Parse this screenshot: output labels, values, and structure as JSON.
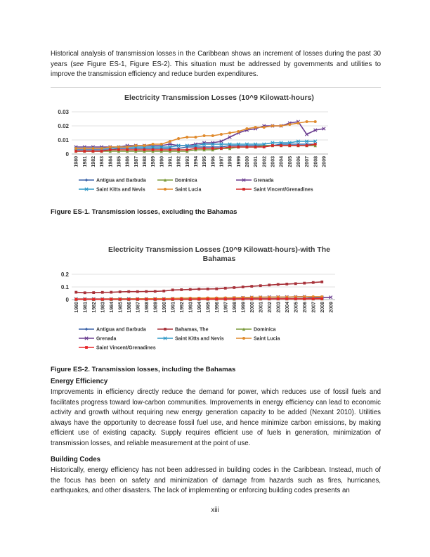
{
  "intro": {
    "text_a": "Historical analysis of transmission losses in the Caribbean shows an increment of losses during the past 30 years (",
    "see": "see",
    "text_b": " Figure ES-1, Figure ES-2). This situation must be addressed by governments and utilities to improve the transmission efficiency and reduce burden expenditures."
  },
  "figure1_caption": "Figure ES-1. Transmission losses, excluding the Bahamas",
  "figure2_caption": "Figure ES-2. Transmission losses, including the Bahamas",
  "energy_efficiency": {
    "heading": "Energy Efficiency",
    "text": "Improvements in efficiency directly reduce the demand for power, which reduces use of fossil fuels and facilitates progress toward low-carbon communities. Improvements in energy efficiency can lead to economic activity and growth without requiring new energy generation capacity to be added (Nexant 2010). Utilities always have the opportunity to decrease fossil fuel use, and hence minimize carbon emissions, by making efficient use of existing capacity. Supply requires efficient use of fuels in generation, minimization of transmission losses, and reliable measurement at the point of use."
  },
  "building_codes": {
    "heading": "Building Codes",
    "text": "Historically, energy efficiency has not been addressed in building codes in the Caribbean. Instead, much of the focus has been on safety and minimization of damage from hazards such as fires, hurricanes, earthquakes, and other disasters. The lack of implementing or enforcing building codes presents an"
  },
  "page_number": "xiii",
  "chart_data": [
    {
      "type": "line",
      "title": "Electricity Transmission Losses (10^9 Kilowatt-hours)",
      "title_lines": [
        "Electricity Transmission Losses (10^9 Kilowatt-hours)"
      ],
      "x": [
        "1980",
        "1981",
        "1982",
        "1983",
        "1984",
        "1985",
        "1986",
        "1987",
        "1988",
        "1989",
        "1990",
        "1991",
        "1992",
        "1993",
        "1994",
        "1995",
        "1996",
        "1997",
        "1998",
        "1999",
        "2000",
        "2001",
        "2002",
        "2003",
        "2004",
        "2005",
        "2006",
        "2007",
        "2008",
        "2009"
      ],
      "ylim": [
        0,
        0.03
      ],
      "yticks": [
        "0",
        "0.01",
        "0.02",
        "0.03"
      ],
      "ytick_values": [
        0,
        0.01,
        0.02,
        0.03
      ],
      "legend_position": "bottom",
      "series": [
        {
          "name": "Antigua and Barbuda",
          "color": "#3a62a8",
          "marker": "diamond",
          "values": [
            0.003,
            0.003,
            0.003,
            0.003,
            0.003,
            0.004,
            0.004,
            0.004,
            0.004,
            0.004,
            0.004,
            0.004,
            0.004,
            0.005,
            0.005,
            0.005,
            0.005,
            0.005,
            0.006,
            0.006,
            0.006,
            0.006,
            0.006,
            0.006,
            0.007,
            0.007,
            0.007,
            0.007,
            0.007,
            null
          ]
        },
        {
          "name": "Dominica",
          "color": "#7a9a3a",
          "marker": "triangle",
          "values": [
            0.002,
            0.002,
            0.002,
            0.002,
            0.002,
            0.002,
            0.002,
            0.002,
            0.002,
            0.002,
            0.002,
            0.002,
            0.002,
            0.002,
            0.003,
            0.003,
            0.003,
            0.004,
            0.004,
            0.005,
            0.005,
            0.005,
            0.006,
            0.006,
            0.006,
            0.006,
            0.006,
            0.006,
            0.006,
            null
          ]
        },
        {
          "name": "Grenada",
          "color": "#6a3d8f",
          "marker": "x",
          "values": [
            0.005,
            0.005,
            0.005,
            0.005,
            0.005,
            0.005,
            0.006,
            0.006,
            0.006,
            0.006,
            0.006,
            0.007,
            0.006,
            0.006,
            0.007,
            0.008,
            0.008,
            0.009,
            0.012,
            0.015,
            0.017,
            0.018,
            0.02,
            0.02,
            0.02,
            0.022,
            0.023,
            0.014,
            0.017,
            0.018
          ]
        },
        {
          "name": "Saint Kitts and Nevis",
          "color": "#2e98c6",
          "marker": "x",
          "values": [
            0.004,
            0.004,
            0.004,
            0.004,
            0.004,
            0.005,
            0.005,
            0.005,
            0.005,
            0.005,
            0.005,
            0.005,
            0.006,
            0.006,
            0.006,
            0.007,
            0.007,
            0.007,
            0.007,
            0.007,
            0.007,
            0.007,
            0.007,
            0.008,
            0.008,
            0.008,
            0.009,
            0.009,
            0.009,
            null
          ]
        },
        {
          "name": "Saint Lucia",
          "color": "#e08a2c",
          "marker": "circle",
          "values": [
            0.004,
            0.004,
            0.004,
            0.004,
            0.005,
            0.005,
            0.005,
            0.006,
            0.006,
            0.007,
            0.007,
            0.009,
            0.011,
            0.012,
            0.012,
            0.013,
            0.013,
            0.014,
            0.015,
            0.016,
            0.018,
            0.019,
            0.019,
            0.02,
            0.02,
            0.021,
            0.022,
            0.023,
            0.023,
            null
          ]
        },
        {
          "name": "Saint Vincent/Grenadines",
          "color": "#d42a2a",
          "marker": "square",
          "values": [
            0.002,
            0.002,
            0.002,
            0.002,
            0.003,
            0.003,
            0.003,
            0.003,
            0.003,
            0.003,
            0.003,
            0.003,
            0.003,
            0.003,
            0.004,
            0.004,
            0.004,
            0.004,
            0.005,
            0.005,
            0.005,
            0.005,
            0.005,
            0.006,
            0.006,
            0.006,
            0.006,
            0.006,
            0.007,
            null
          ]
        }
      ]
    },
    {
      "type": "line",
      "title": "Electricity Transmission Losses (10^9 Kilowatt-hours)-with The Bahamas",
      "title_lines": [
        "Electricity Transmission Losses (10^9 Kilowatt-hours)-with The",
        "Bahamas"
      ],
      "x": [
        "1980",
        "1981",
        "1982",
        "1983",
        "1984",
        "1985",
        "1986",
        "1987",
        "1988",
        "1989",
        "1990",
        "1991",
        "1992",
        "1993",
        "1994",
        "1995",
        "1996",
        "1997",
        "1998",
        "1999",
        "2000",
        "2001",
        "2002",
        "2003",
        "2004",
        "2005",
        "2006",
        "2007",
        "2008",
        "2009"
      ],
      "ylim": [
        0,
        0.2
      ],
      "yticks": [
        "0",
        "0.1",
        "0.2"
      ],
      "ytick_values": [
        0,
        0.1,
        0.2
      ],
      "legend_position": "bottom",
      "series": [
        {
          "name": "Antigua and Barbuda",
          "color": "#3a62a8",
          "marker": "diamond",
          "values": [
            0.003,
            0.003,
            0.003,
            0.003,
            0.003,
            0.004,
            0.004,
            0.004,
            0.004,
            0.004,
            0.004,
            0.004,
            0.004,
            0.005,
            0.005,
            0.005,
            0.005,
            0.005,
            0.006,
            0.006,
            0.006,
            0.006,
            0.006,
            0.006,
            0.007,
            0.007,
            0.007,
            0.007,
            0.007,
            null
          ]
        },
        {
          "name": "Bahamas, The",
          "color": "#a8323a",
          "marker": "square",
          "values": [
            0.058,
            0.054,
            0.055,
            0.057,
            0.058,
            0.061,
            0.063,
            0.063,
            0.064,
            0.065,
            0.068,
            0.076,
            0.078,
            0.08,
            0.083,
            0.084,
            0.085,
            0.09,
            0.095,
            0.1,
            0.105,
            0.11,
            0.115,
            0.12,
            0.123,
            0.126,
            0.13,
            0.135,
            0.14,
            null
          ]
        },
        {
          "name": "Dominica",
          "color": "#7a9a3a",
          "marker": "triangle",
          "values": [
            0.002,
            0.002,
            0.002,
            0.002,
            0.002,
            0.002,
            0.002,
            0.002,
            0.002,
            0.002,
            0.002,
            0.002,
            0.002,
            0.002,
            0.003,
            0.003,
            0.003,
            0.004,
            0.004,
            0.005,
            0.005,
            0.005,
            0.006,
            0.006,
            0.006,
            0.006,
            0.006,
            0.006,
            0.006,
            null
          ]
        },
        {
          "name": "Grenada",
          "color": "#6a3d8f",
          "marker": "x",
          "values": [
            0.005,
            0.005,
            0.005,
            0.005,
            0.005,
            0.005,
            0.006,
            0.006,
            0.006,
            0.006,
            0.006,
            0.007,
            0.006,
            0.006,
            0.007,
            0.008,
            0.008,
            0.009,
            0.012,
            0.015,
            0.017,
            0.018,
            0.02,
            0.02,
            0.02,
            0.022,
            0.023,
            0.014,
            0.017,
            0.018
          ]
        },
        {
          "name": "Saint Kitts and Nevis",
          "color": "#2e98c6",
          "marker": "x",
          "values": [
            0.004,
            0.004,
            0.004,
            0.004,
            0.004,
            0.005,
            0.005,
            0.005,
            0.005,
            0.005,
            0.005,
            0.005,
            0.006,
            0.006,
            0.006,
            0.007,
            0.007,
            0.007,
            0.007,
            0.007,
            0.007,
            0.007,
            0.007,
            0.008,
            0.008,
            0.008,
            0.009,
            0.009,
            0.009,
            null
          ]
        },
        {
          "name": "Saint Lucia",
          "color": "#e08a2c",
          "marker": "circle",
          "values": [
            0.004,
            0.004,
            0.004,
            0.004,
            0.005,
            0.005,
            0.005,
            0.006,
            0.006,
            0.007,
            0.007,
            0.009,
            0.011,
            0.012,
            0.012,
            0.013,
            0.013,
            0.014,
            0.015,
            0.016,
            0.018,
            0.019,
            0.019,
            0.02,
            0.02,
            0.021,
            0.022,
            0.023,
            0.023,
            null
          ]
        },
        {
          "name": "Saint Vincent/Grenadines",
          "color": "#e8262a",
          "marker": "square",
          "values": [
            0.002,
            0.002,
            0.002,
            0.002,
            0.003,
            0.003,
            0.003,
            0.003,
            0.003,
            0.003,
            0.003,
            0.003,
            0.003,
            0.003,
            0.004,
            0.004,
            0.004,
            0.004,
            0.005,
            0.005,
            0.005,
            0.005,
            0.005,
            0.006,
            0.006,
            0.006,
            0.006,
            0.006,
            0.007,
            null
          ]
        }
      ]
    }
  ]
}
